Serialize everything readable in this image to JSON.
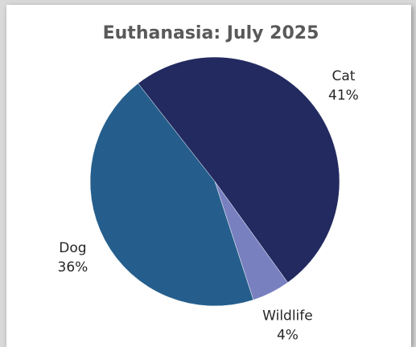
{
  "chart_data": {
    "type": "pie",
    "title": "Euthanasia: July 2025",
    "categories": [
      "Cat",
      "Wildlife",
      "Dog"
    ],
    "values": [
      41,
      4,
      36
    ],
    "value_labels": [
      "41%",
      "4%",
      "36%"
    ],
    "colors": [
      "#222a60",
      "#7880c0",
      "#255e8c"
    ]
  }
}
